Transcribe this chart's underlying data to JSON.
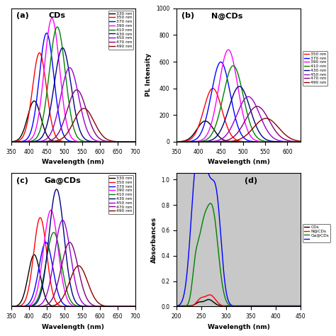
{
  "panel_a": {
    "title": "CDs",
    "label": "(a)",
    "xlabel": "Wavelength (nm)",
    "xlim": [
      350,
      700
    ],
    "ylim": [
      0,
      1.08
    ],
    "peaks": [
      415,
      430,
      450,
      465,
      480,
      495,
      515,
      535,
      555
    ],
    "heights": [
      0.33,
      0.72,
      0.88,
      1.0,
      0.93,
      0.76,
      0.6,
      0.42,
      0.27
    ],
    "widths": [
      44,
      46,
      48,
      50,
      53,
      56,
      60,
      64,
      67
    ],
    "colors": [
      "#000000",
      "#ff0000",
      "#0000ff",
      "#ff00ff",
      "#008000",
      "#000080",
      "#9400d3",
      "#800080",
      "#8B0000"
    ],
    "xticks": [
      350,
      400,
      450,
      500,
      550,
      600,
      650,
      700
    ]
  },
  "panel_b": {
    "title": "N@CDs",
    "label": "(b)",
    "xlabel": "Wavelength (nm)",
    "ylabel": "PL Intensity",
    "xlim": [
      350,
      630
    ],
    "ylim": [
      0,
      1000
    ],
    "peaks": [
      415,
      432,
      450,
      467,
      478,
      492,
      512,
      532,
      552
    ],
    "heights": [
      155,
      400,
      598,
      690,
      570,
      415,
      338,
      265,
      175
    ],
    "widths": [
      44,
      48,
      50,
      50,
      53,
      56,
      60,
      63,
      66
    ],
    "colors": [
      "#000000",
      "#ff0000",
      "#0000ff",
      "#ff00ff",
      "#008000",
      "#000080",
      "#9400d3",
      "#800080",
      "#8B0000"
    ],
    "xticks": [
      350,
      400,
      450,
      500,
      550,
      600
    ],
    "yticks": [
      0,
      200,
      400,
      600,
      800,
      1000
    ]
  },
  "panel_c": {
    "title": "Ga@CDs",
    "label": "(c)",
    "xlabel": "Wavelength (nm)",
    "xlim": [
      350,
      700
    ],
    "ylim": [
      0,
      1.08
    ],
    "peaks": [
      415,
      432,
      448,
      462,
      470,
      478,
      495,
      515,
      540
    ],
    "heights": [
      0.42,
      0.72,
      0.52,
      0.78,
      0.6,
      0.95,
      0.7,
      0.52,
      0.33
    ],
    "widths": [
      40,
      43,
      46,
      48,
      50,
      50,
      53,
      56,
      60
    ],
    "colors": [
      "#000000",
      "#ff0000",
      "#0000ff",
      "#ff00ff",
      "#008000",
      "#000080",
      "#9400d3",
      "#800080",
      "#8B0000"
    ],
    "xticks": [
      350,
      400,
      450,
      500,
      550,
      600,
      650,
      700
    ]
  },
  "panel_d": {
    "label": "(d)",
    "xlabel": "Wavelength (nm)",
    "ylabel": "Absorbances",
    "xlim": [
      200,
      450
    ],
    "ylim": [
      0,
      1.05
    ],
    "bg_color": "#c8c8c8",
    "xticks": [
      200,
      250,
      300,
      350,
      400,
      450
    ],
    "yticks": [
      0.0,
      0.2,
      0.4,
      0.6,
      0.8,
      1.0
    ]
  },
  "legend_labels": [
    "330 nm",
    "350 nm",
    "370 nm",
    "390 nm",
    "410 nm",
    "430 nm",
    "450 nm",
    "470 nm",
    "490 nm"
  ],
  "legend_colors": [
    "#000000",
    "#ff0000",
    "#0000ff",
    "#ff00ff",
    "#008000",
    "#000080",
    "#9400d3",
    "#800080",
    "#8B0000"
  ]
}
